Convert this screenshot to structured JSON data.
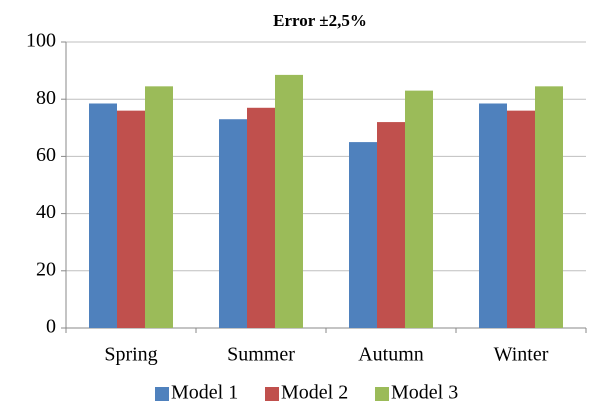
{
  "chart_data": {
    "type": "bar",
    "title": "Error ±2,5%",
    "categories": [
      "Spring",
      "Summer",
      "Autumn",
      "Winter"
    ],
    "series": [
      {
        "name": "Model 1",
        "color": "#4f81bd",
        "values": [
          78.5,
          73,
          65,
          78.5
        ]
      },
      {
        "name": "Model 2",
        "color": "#c0504d",
        "values": [
          76,
          77,
          72,
          76
        ]
      },
      {
        "name": "Model 3",
        "color": "#9bbb59",
        "values": [
          84.5,
          88.5,
          83,
          84.5
        ]
      }
    ],
    "ylim": [
      0,
      100
    ],
    "yticks": [
      0,
      20,
      40,
      60,
      80,
      100
    ],
    "grid": true,
    "legend": "bottom"
  }
}
